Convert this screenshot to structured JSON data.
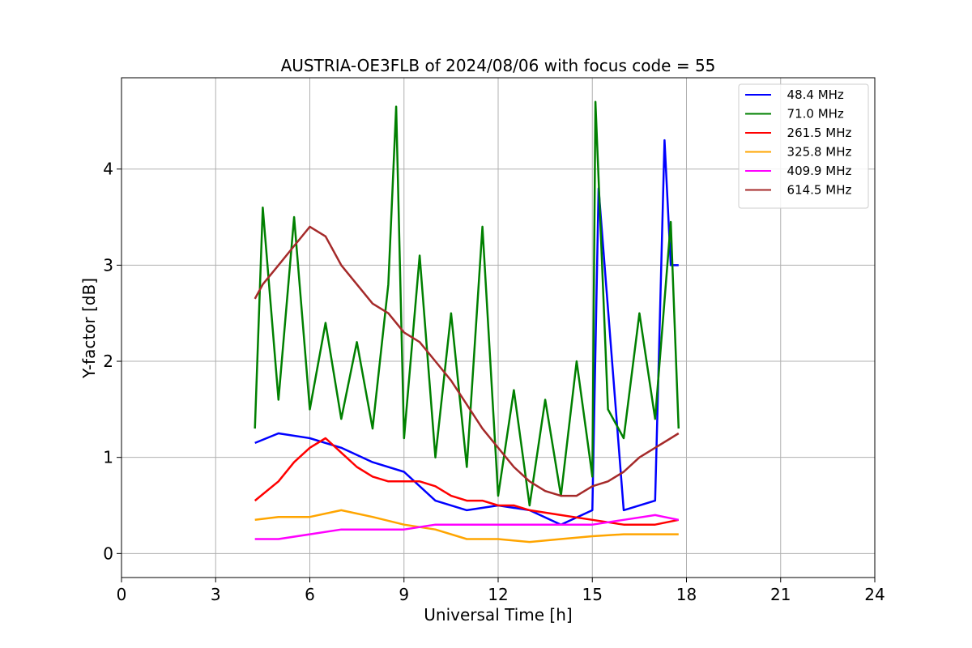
{
  "chart_data": {
    "type": "line",
    "title": "AUSTRIA-OE3FLB of 2024/08/06 with focus code = 55",
    "xlabel": "Universal Time [h]",
    "ylabel": "Y-factor [dB]",
    "xlim": [
      0,
      24
    ],
    "ylim": [
      -0.25,
      4.95
    ],
    "xticks": [
      0,
      3,
      6,
      9,
      12,
      15,
      18,
      21,
      24
    ],
    "xtick_labels": [
      "0",
      "3",
      "6",
      "9",
      "12",
      "15",
      "18",
      "21",
      "24"
    ],
    "yticks": [
      0,
      1,
      2,
      3,
      4
    ],
    "ytick_labels": [
      "0",
      "1",
      "2",
      "3",
      "4"
    ],
    "grid": true,
    "legend_position": "top-right",
    "series": [
      {
        "name": "  48.4 MHz",
        "color": "#0000ff",
        "x": [
          4.25,
          5.0,
          6.0,
          7.0,
          8.0,
          9.0,
          10.0,
          11.0,
          12.0,
          13.0,
          14.0,
          15.0,
          15.2,
          16.0,
          17.0,
          17.3,
          17.5,
          17.75
        ],
        "y": [
          1.15,
          1.25,
          1.2,
          1.1,
          0.95,
          0.85,
          0.55,
          0.45,
          0.5,
          0.45,
          0.3,
          0.45,
          3.8,
          0.45,
          0.55,
          4.3,
          3.0,
          3.0
        ]
      },
      {
        "name": "  71.0 MHz",
        "color": "#008000",
        "x": [
          4.25,
          4.5,
          5.0,
          5.5,
          6.0,
          6.5,
          7.0,
          7.5,
          8.0,
          8.5,
          8.75,
          9.0,
          9.5,
          10.0,
          10.5,
          11.0,
          11.5,
          12.0,
          12.5,
          13.0,
          13.5,
          14.0,
          14.5,
          15.0,
          15.1,
          15.5,
          16.0,
          16.5,
          17.0,
          17.5,
          17.75
        ],
        "y": [
          1.3,
          3.6,
          1.6,
          3.5,
          1.5,
          2.4,
          1.4,
          2.2,
          1.3,
          2.8,
          4.65,
          1.2,
          3.1,
          1.0,
          2.5,
          0.9,
          3.4,
          0.6,
          1.7,
          0.5,
          1.6,
          0.6,
          2.0,
          0.8,
          4.7,
          1.5,
          1.2,
          2.5,
          1.4,
          3.45,
          1.3
        ]
      },
      {
        "name": "  261.5 MHz",
        "color": "#ff0000",
        "x": [
          4.25,
          5.0,
          5.5,
          6.0,
          6.5,
          7.0,
          7.5,
          8.0,
          8.5,
          9.0,
          9.5,
          10.0,
          10.5,
          11.0,
          11.5,
          12.0,
          12.5,
          13.0,
          14.0,
          15.0,
          16.0,
          17.0,
          17.75
        ],
        "y": [
          0.55,
          0.75,
          0.95,
          1.1,
          1.2,
          1.05,
          0.9,
          0.8,
          0.75,
          0.75,
          0.75,
          0.7,
          0.6,
          0.55,
          0.55,
          0.5,
          0.5,
          0.45,
          0.4,
          0.35,
          0.3,
          0.3,
          0.35
        ]
      },
      {
        "name": "  325.8 MHz",
        "color": "#ffa500",
        "x": [
          4.25,
          5.0,
          6.0,
          7.0,
          8.0,
          9.0,
          10.0,
          11.0,
          12.0,
          13.0,
          14.0,
          15.0,
          16.0,
          17.0,
          17.75
        ],
        "y": [
          0.35,
          0.38,
          0.38,
          0.45,
          0.38,
          0.3,
          0.25,
          0.15,
          0.15,
          0.12,
          0.15,
          0.18,
          0.2,
          0.2,
          0.2
        ]
      },
      {
        "name": "  409.9 MHz",
        "color": "#ff00ff",
        "x": [
          4.25,
          5.0,
          6.0,
          7.0,
          8.0,
          9.0,
          10.0,
          11.0,
          12.0,
          13.0,
          14.0,
          15.0,
          16.0,
          17.0,
          17.75
        ],
        "y": [
          0.15,
          0.15,
          0.2,
          0.25,
          0.25,
          0.25,
          0.3,
          0.3,
          0.3,
          0.3,
          0.3,
          0.3,
          0.35,
          0.4,
          0.35
        ]
      },
      {
        "name": "  614.5 MHz",
        "color": "#a52a2a",
        "x": [
          4.25,
          4.5,
          5.0,
          5.5,
          6.0,
          6.5,
          7.0,
          7.5,
          8.0,
          8.5,
          9.0,
          9.5,
          10.0,
          10.5,
          11.0,
          11.5,
          12.0,
          12.5,
          13.0,
          13.5,
          14.0,
          14.5,
          15.0,
          15.5,
          16.0,
          16.5,
          17.0,
          17.5,
          17.75
        ],
        "y": [
          2.65,
          2.8,
          3.0,
          3.2,
          3.4,
          3.3,
          3.0,
          2.8,
          2.6,
          2.5,
          2.3,
          2.2,
          2.0,
          1.8,
          1.55,
          1.3,
          1.1,
          0.9,
          0.75,
          0.65,
          0.6,
          0.6,
          0.7,
          0.75,
          0.85,
          1.0,
          1.1,
          1.2,
          1.25
        ]
      }
    ]
  }
}
